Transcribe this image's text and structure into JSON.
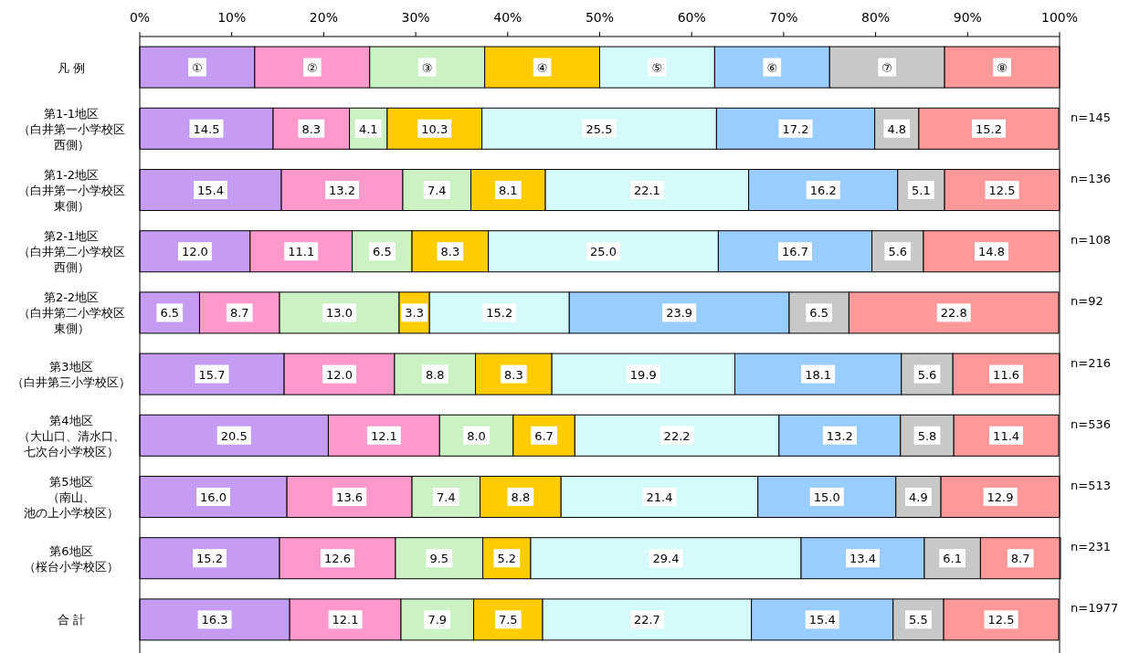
{
  "chart_data": {
    "type": "bar",
    "orientation": "horizontal",
    "stacked": true,
    "categories": [
      "凡 例",
      "第1-1地区（白井第一小学校区西側）",
      "第1-2地区（白井第一小学校区東側）",
      "第2-1地区（白井第二小学校区西側）",
      "第2-2地区（白井第二小学校区東側）",
      "第3地区（白井第三小学校区）",
      "第4地区（大山口、清水口、七次台小学校区）",
      "第5地区（南山、池の上小学校区）",
      "第6地区（桜台小学校区）",
      "合 計"
    ],
    "xlim": [
      0,
      100
    ],
    "xticks": [
      {
        "value": 0,
        "label": "0%"
      },
      {
        "value": 10,
        "label": "10%"
      },
      {
        "value": 20,
        "label": "20%"
      },
      {
        "value": 30,
        "label": "30%"
      },
      {
        "value": 40,
        "label": "40%"
      },
      {
        "value": 50,
        "label": "50%"
      },
      {
        "value": 60,
        "label": "60%"
      },
      {
        "value": 70,
        "label": "70%"
      },
      {
        "value": 80,
        "label": "80%"
      },
      {
        "value": 90,
        "label": "90%"
      },
      {
        "value": 100,
        "label": "100%"
      }
    ],
    "series": [
      {
        "color": "#c59cf4",
        "values": [
          12.5,
          14.5,
          15.4,
          12.0,
          6.5,
          15.7,
          20.5,
          16.0,
          15.2,
          16.3
        ],
        "value_labels": [
          "①",
          "14.5",
          "15.4",
          "12.0",
          "6.5",
          "15.7",
          "20.5",
          "16.0",
          "15.2",
          "16.3"
        ]
      },
      {
        "color": "#ff99cc",
        "values": [
          12.5,
          8.3,
          13.2,
          11.1,
          8.7,
          12.0,
          12.1,
          13.6,
          12.6,
          12.1
        ],
        "value_labels": [
          "②",
          "8.3",
          "13.2",
          "11.1",
          "8.7",
          "12.0",
          "12.1",
          "13.6",
          "12.6",
          "12.1"
        ]
      },
      {
        "color": "#ccf2c4",
        "values": [
          12.5,
          4.1,
          7.4,
          6.5,
          13.0,
          8.8,
          8.0,
          7.4,
          9.5,
          7.9
        ],
        "value_labels": [
          "③",
          "4.1",
          "7.4",
          "6.5",
          "13.0",
          "8.8",
          "8.0",
          "7.4",
          "9.5",
          "7.9"
        ]
      },
      {
        "color": "#ffcc00",
        "values": [
          12.5,
          10.3,
          8.1,
          8.3,
          3.3,
          8.3,
          6.7,
          8.8,
          5.2,
          7.5
        ],
        "value_labels": [
          "④",
          "10.3",
          "8.1",
          "8.3",
          "3.3",
          "8.3",
          "6.7",
          "8.8",
          "5.2",
          "7.5"
        ]
      },
      {
        "color": "#d4fafa",
        "values": [
          12.5,
          25.5,
          22.1,
          25.0,
          15.2,
          19.9,
          22.2,
          21.4,
          29.4,
          22.7
        ],
        "value_labels": [
          "⑤",
          "25.5",
          "22.1",
          "25.0",
          "15.2",
          "19.9",
          "22.2",
          "21.4",
          "29.4",
          "22.7"
        ]
      },
      {
        "color": "#99ccff",
        "values": [
          12.5,
          17.2,
          16.2,
          16.7,
          23.9,
          18.1,
          13.2,
          15.0,
          13.4,
          15.4
        ],
        "value_labels": [
          "⑥",
          "17.2",
          "16.2",
          "16.7",
          "23.9",
          "18.1",
          "13.2",
          "15.0",
          "13.4",
          "15.4"
        ]
      },
      {
        "color": "#c8c8c8",
        "values": [
          12.5,
          4.8,
          5.1,
          5.6,
          6.5,
          5.6,
          5.8,
          4.9,
          6.1,
          5.5
        ],
        "value_labels": [
          "⑦",
          "4.8",
          "5.1",
          "5.6",
          "6.5",
          "5.6",
          "5.8",
          "4.9",
          "6.1",
          "5.5"
        ]
      },
      {
        "color": "#ff9999",
        "values": [
          12.5,
          15.2,
          12.5,
          14.8,
          22.8,
          11.6,
          11.4,
          12.9,
          8.7,
          12.5
        ],
        "value_labels": [
          "⑧",
          "15.2",
          "12.5",
          "14.8",
          "22.8",
          "11.6",
          "11.4",
          "12.9",
          "8.7",
          "12.5"
        ]
      }
    ],
    "annotations": [
      "n=145",
      "n=136",
      "n=108",
      "n=92",
      "n=216",
      "n=536",
      "n=513",
      "n=231",
      "n=1977"
    ]
  }
}
